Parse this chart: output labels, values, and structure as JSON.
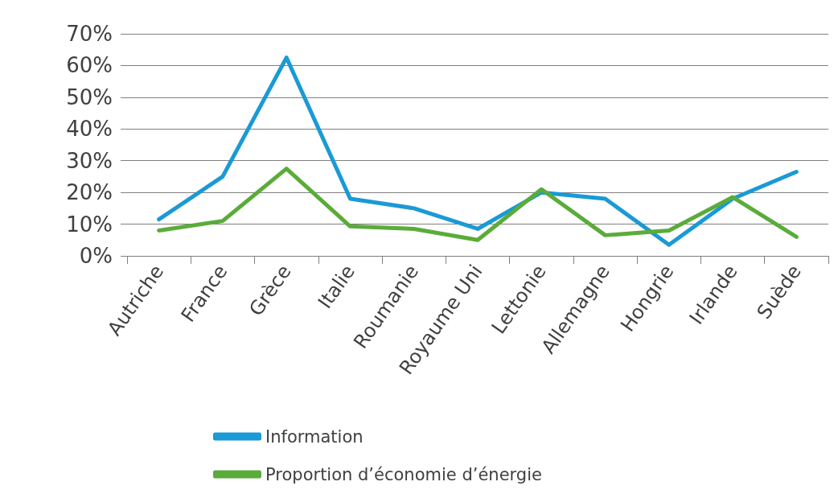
{
  "chart_data": {
    "type": "line",
    "categories": [
      "Autriche",
      "France",
      "Grèce",
      "Italie",
      "Roumanie",
      "Royaume Uni",
      "Lettonie",
      "Allemagne",
      "Hongrie",
      "Irlande",
      "Suède"
    ],
    "series": [
      {
        "name": "Information",
        "color": "#1a9ad6",
        "values": [
          11.5,
          25,
          62.5,
          18,
          15,
          8.5,
          20,
          18,
          3.5,
          18,
          26.5
        ]
      },
      {
        "name": "Proportion d’économie d’énergie",
        "color": "#5aac3a",
        "values": [
          8,
          11,
          27.5,
          9.3,
          8.5,
          5,
          21,
          6.5,
          8,
          18.5,
          6
        ]
      }
    ],
    "ylim": [
      0,
      70
    ],
    "yticks": [
      {
        "value": 0,
        "label": "0%"
      },
      {
        "value": 10,
        "label": "10%"
      },
      {
        "value": 20,
        "label": "20%"
      },
      {
        "value": 30,
        "label": "30%"
      },
      {
        "value": 40,
        "label": "40%"
      },
      {
        "value": 50,
        "label": "50%"
      },
      {
        "value": 60,
        "label": "60%"
      },
      {
        "value": 70,
        "label": "70%"
      }
    ],
    "grid": "y",
    "legend": "bottom left",
    "marker": "none",
    "line_style": "solid"
  }
}
